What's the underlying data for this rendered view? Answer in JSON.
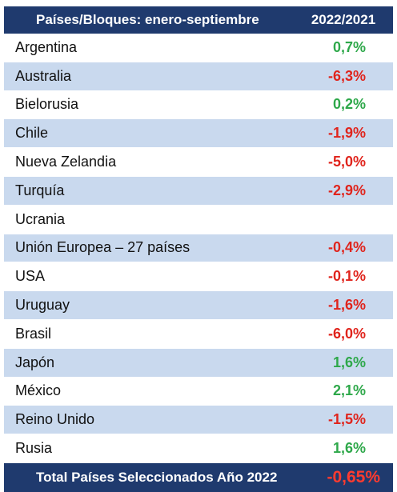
{
  "header": {
    "name_label": "Países/Bloques: enero-septiembre",
    "value_label": "2022/2021"
  },
  "rows": [
    {
      "name": "Argentina",
      "value": "0,7%",
      "trend": "positive"
    },
    {
      "name": "Australia",
      "value": "-6,3%",
      "trend": "negative"
    },
    {
      "name": "Bielorusia",
      "value": "0,2%",
      "trend": "positive"
    },
    {
      "name": "Chile",
      "value": "-1,9%",
      "trend": "negative"
    },
    {
      "name": "Nueva Zelandia",
      "value": "-5,0%",
      "trend": "negative"
    },
    {
      "name": "Turquía",
      "value": "-2,9%",
      "trend": "negative"
    },
    {
      "name": "Ucrania",
      "value": "",
      "trend": "none"
    },
    {
      "name": "Unión Europea – 27 países",
      "value": "-0,4%",
      "trend": "negative"
    },
    {
      "name": "USA",
      "value": "-0,1%",
      "trend": "negative"
    },
    {
      "name": "Uruguay",
      "value": "-1,6%",
      "trend": "negative"
    },
    {
      "name": "Brasil",
      "value": "-6,0%",
      "trend": "negative"
    },
    {
      "name": "Japón",
      "value": "1,6%",
      "trend": "positive"
    },
    {
      "name": "México",
      "value": "2,1%",
      "trend": "positive"
    },
    {
      "name": "Reino Unido",
      "value": "-1,5%",
      "trend": "negative"
    },
    {
      "name": "Rusia",
      "value": "1,6%",
      "trend": "positive"
    }
  ],
  "footer": {
    "label": "Total Países Seleccionados Año 2022",
    "value": "-0,65%"
  },
  "colors": {
    "header_bg": "#1f3a6e",
    "stripe": "#c9d9ee",
    "positive": "#2ea84a",
    "negative": "#e0241c"
  }
}
